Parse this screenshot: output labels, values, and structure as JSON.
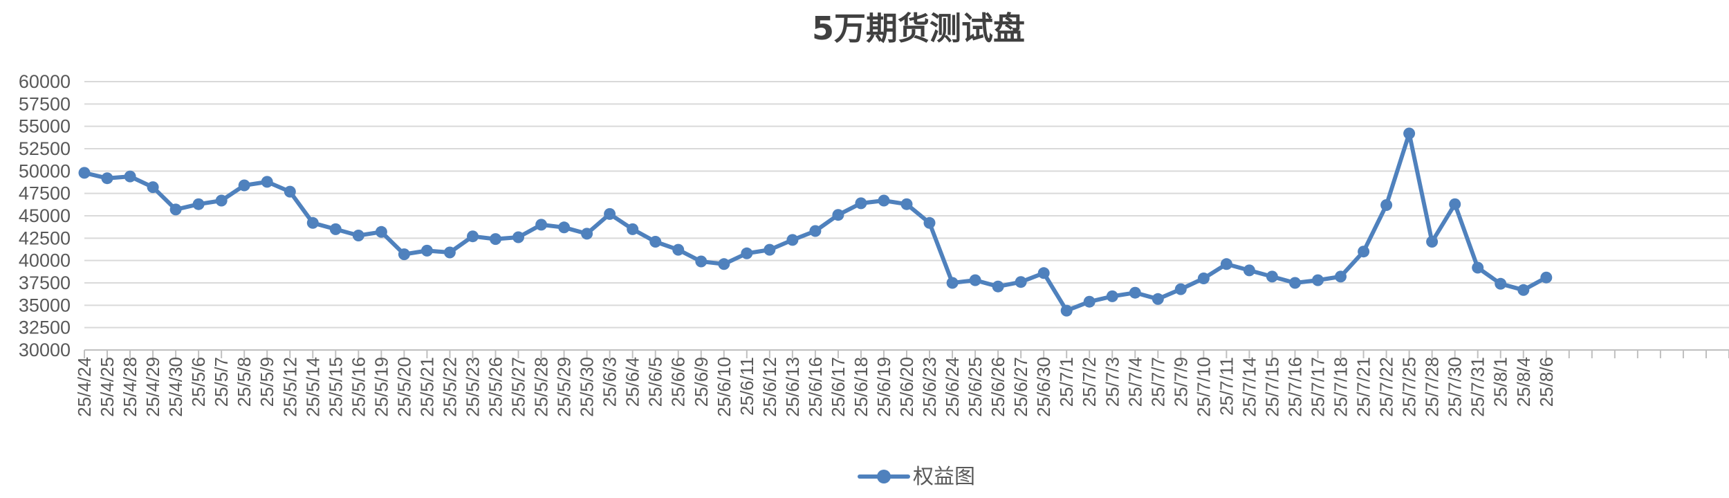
{
  "chart_data": {
    "type": "line",
    "title": "5万期货测试盘",
    "xlabel": "",
    "ylabel": "",
    "ylim": [
      30000,
      60000
    ],
    "ytick_step": 2500,
    "grid": true,
    "legend_position": "bottom",
    "color": "#4f81bd",
    "categories": [
      "25/4/24",
      "25/4/25",
      "25/4/28",
      "25/4/29",
      "25/4/30",
      "25/5/6",
      "25/5/7",
      "25/5/8",
      "25/5/9",
      "25/5/12",
      "25/5/14",
      "25/5/15",
      "25/5/16",
      "25/5/19",
      "25/5/20",
      "25/5/21",
      "25/5/22",
      "25/5/23",
      "25/5/26",
      "25/5/27",
      "25/5/28",
      "25/5/29",
      "25/5/30",
      "25/6/3",
      "25/6/4",
      "25/6/5",
      "25/6/6",
      "25/6/9",
      "25/6/10",
      "25/6/11",
      "25/6/12",
      "25/6/13",
      "25/6/16",
      "25/6/17",
      "25/6/18",
      "25/6/19",
      "25/6/20",
      "25/6/23",
      "25/6/24",
      "25/6/25",
      "25/6/26",
      "25/6/27",
      "25/6/30",
      "25/7/1",
      "25/7/2",
      "25/7/3",
      "25/7/4",
      "25/7/7",
      "25/7/9",
      "25/7/10",
      "25/7/11",
      "25/7/14",
      "25/7/15",
      "25/7/16",
      "25/7/17",
      "25/7/18",
      "25/7/21",
      "25/7/22",
      "25/7/25",
      "25/7/28",
      "25/7/30",
      "25/7/31",
      "25/8/1",
      "25/8/4",
      "25/8/6"
    ],
    "series": [
      {
        "name": "权益图",
        "values": [
          49800,
          49200,
          49400,
          48200,
          45700,
          46300,
          46700,
          48400,
          48800,
          47700,
          44200,
          43500,
          42800,
          43200,
          40700,
          41100,
          40900,
          42700,
          42400,
          42600,
          44000,
          43700,
          43000,
          45200,
          43500,
          42100,
          41200,
          39900,
          39600,
          40800,
          41200,
          42300,
          43300,
          45100,
          46400,
          46700,
          46300,
          44200,
          37500,
          37800,
          37100,
          37600,
          38600,
          34400,
          35400,
          36000,
          36400,
          35700,
          36800,
          38000,
          39600,
          38900,
          38200,
          37500,
          37800,
          38200,
          41000,
          46200,
          54200,
          42100,
          46300,
          39200,
          37400,
          36700,
          38100
        ]
      }
    ],
    "extra_empty_slots": 7
  }
}
